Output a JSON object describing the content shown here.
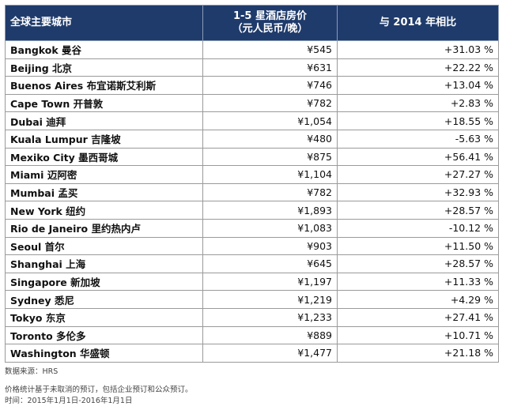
{
  "table": {
    "headers": {
      "city": "全球主要城市",
      "price_line1": "1-5 星酒店房价",
      "price_line2": "（元人民币/晚）",
      "change": "与 2014 年相比"
    },
    "rows": [
      {
        "city": "Bangkok 曼谷",
        "price": "¥545",
        "change": "+31.03 %"
      },
      {
        "city": "Beijing 北京",
        "price": "¥631",
        "change": "+22.22 %"
      },
      {
        "city": "Buenos Aires 布宜诺斯艾利斯",
        "price": "¥746",
        "change": "+13.04 %"
      },
      {
        "city": "Cape Town 开普敦",
        "price": "¥782",
        "change": "+2.83 %"
      },
      {
        "city": "Dubai 迪拜",
        "price": "¥1,054",
        "change": "+18.55 %"
      },
      {
        "city": "Kuala Lumpur 吉隆坡",
        "price": "¥480",
        "change": "-5.63 %"
      },
      {
        "city": "Mexiko City 墨西哥城",
        "price": "¥875",
        "change": "+56.41 %"
      },
      {
        "city": "Miami 迈阿密",
        "price": "¥1,104",
        "change": "+27.27 %"
      },
      {
        "city": "Mumbai 孟买",
        "price": "¥782",
        "change": "+32.93 %"
      },
      {
        "city": "New York 纽约",
        "price": "¥1,893",
        "change": "+28.57 %"
      },
      {
        "city": "Rio de Janeiro 里约热内卢",
        "price": "¥1,083",
        "change": "-10.12 %"
      },
      {
        "city": "Seoul 首尔",
        "price": "¥903",
        "change": "+11.50 %"
      },
      {
        "city": "Shanghai 上海",
        "price": "¥645",
        "change": "+28.57 %"
      },
      {
        "city": "Singapore 新加坡",
        "price": "¥1,197",
        "change": "+11.33 %"
      },
      {
        "city": "Sydney 悉尼",
        "price": "¥1,219",
        "change": "+4.29 %"
      },
      {
        "city": "Tokyo 东京",
        "price": "¥1,233",
        "change": "+27.41 %"
      },
      {
        "city": "Toronto 多伦多",
        "price": "¥889",
        "change": "+10.71 %"
      },
      {
        "city": "Washington 华盛顿",
        "price": "¥1,477",
        "change": "+21.18 %"
      }
    ]
  },
  "notes": {
    "source": "数据来源：HRS",
    "price_note": "价格统计基于未取消的预订，包括企业预订和公众预订。",
    "period": "时间：2015年1月1日-2016年1月1日"
  }
}
